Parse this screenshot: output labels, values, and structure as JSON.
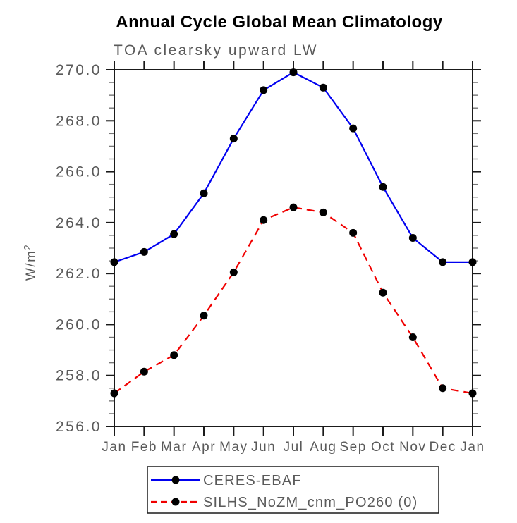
{
  "page": {
    "background": "#ffffff"
  },
  "chart_data": {
    "type": "line",
    "title": "Annual Cycle Global Mean Climatology",
    "subtitle": "TOA clearsky upward LW",
    "ylabel": "W/m²",
    "xlabel": "",
    "categories": [
      "Jan",
      "Feb",
      "Mar",
      "Apr",
      "May",
      "Jun",
      "Jul",
      "Aug",
      "Sep",
      "Oct",
      "Nov",
      "Dec",
      "Jan"
    ],
    "ylim": [
      256.0,
      270.0
    ],
    "ytick_step": 2.0,
    "ytick_minor_step": 0.5,
    "ytick_labels": [
      "256.0",
      "258.0",
      "260.0",
      "262.0",
      "264.0",
      "266.0",
      "268.0",
      "270.0"
    ],
    "grid": false,
    "legend_position": "bottom-center-boxed",
    "axis_color": "#1a1a1a",
    "minor_tick_color": "#777777",
    "label_color": "#5a5a5a",
    "marker_color": "#000000",
    "series": [
      {
        "name": "CERES-EBAF",
        "color": "#0000f0",
        "line_style": "solid",
        "marker": "filled-circle",
        "values": [
          262.45,
          262.85,
          263.55,
          265.15,
          267.3,
          269.2,
          269.9,
          269.3,
          267.7,
          265.4,
          263.4,
          262.45,
          262.45
        ]
      },
      {
        "name": "SILHS_NoZM_cnm_PO260 (0)",
        "color": "#f00000",
        "line_style": "dashed",
        "marker": "filled-circle",
        "values": [
          257.3,
          258.15,
          258.8,
          260.35,
          262.05,
          264.1,
          264.6,
          264.4,
          263.6,
          261.25,
          259.5,
          257.5,
          257.3
        ]
      }
    ]
  }
}
